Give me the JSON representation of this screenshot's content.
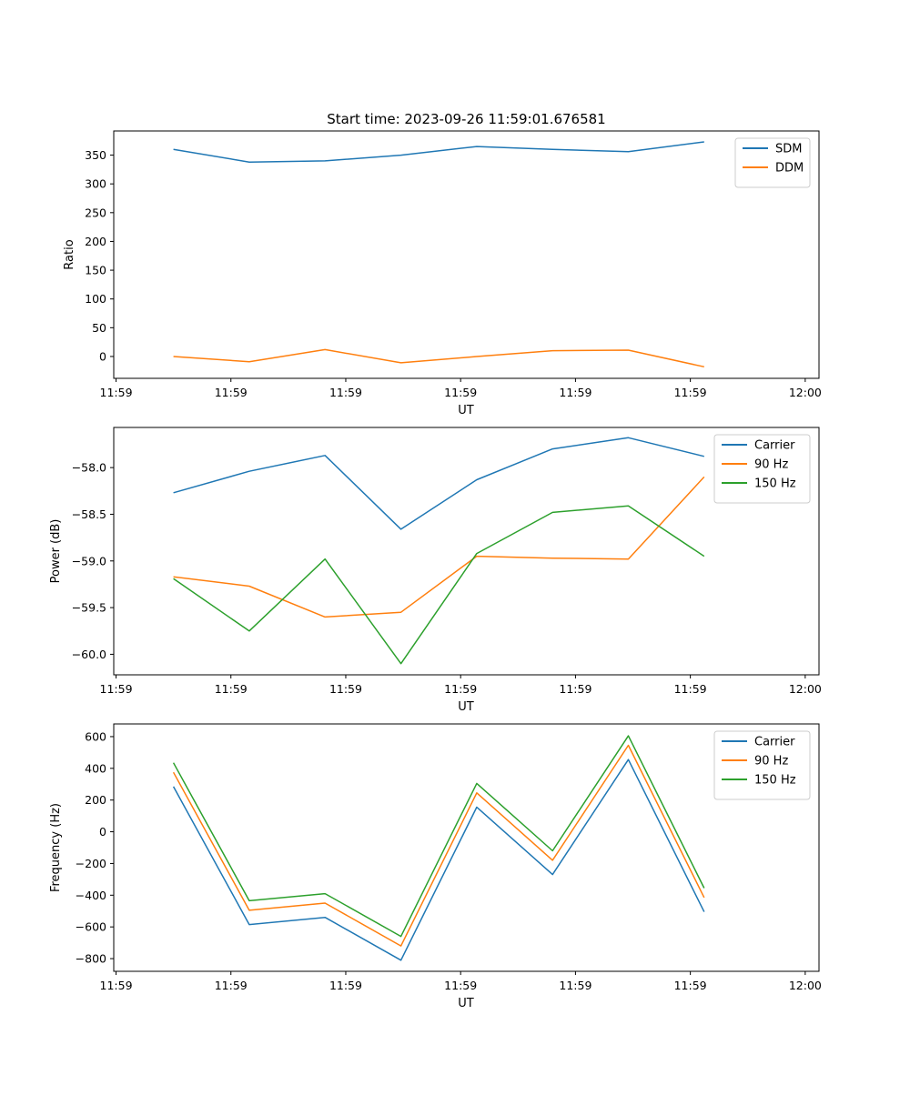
{
  "figure_title": "Start time: 2023-09-26 11:59:01.676581",
  "chart_data": [
    {
      "type": "line",
      "title": "Start time: 2023-09-26 11:59:01.676581",
      "xlabel": "UT",
      "ylabel": "Ratio",
      "x": [
        0.5,
        1.16,
        1.82,
        2.48,
        3.14,
        3.8,
        4.46,
        5.12
      ],
      "xlim": [
        -0.02,
        6.12
      ],
      "xticks": [
        0,
        1,
        2,
        3,
        4,
        5,
        6
      ],
      "xtick_labels": [
        "11:59",
        "11:59",
        "11:59",
        "11:59",
        "11:59",
        "11:59",
        "12:00"
      ],
      "ylim": [
        -38,
        392
      ],
      "yticks": [
        0,
        50,
        100,
        150,
        200,
        250,
        300,
        350
      ],
      "ytick_labels": [
        "0",
        "50",
        "100",
        "150",
        "200",
        "250",
        "300",
        "350"
      ],
      "legend_position": "top-right",
      "series": [
        {
          "name": "SDM",
          "color": "#1f77b4",
          "values": [
            360,
            338,
            340,
            350,
            365,
            360,
            356,
            373
          ]
        },
        {
          "name": "DDM",
          "color": "#ff7f0e",
          "values": [
            0,
            -9,
            12,
            -11,
            0,
            10,
            11,
            -18
          ]
        }
      ]
    },
    {
      "type": "line",
      "title": "",
      "xlabel": "UT",
      "ylabel": "Power (dB)",
      "x": [
        0.5,
        1.16,
        1.82,
        2.48,
        3.14,
        3.8,
        4.46,
        5.12
      ],
      "xlim": [
        -0.02,
        6.12
      ],
      "xticks": [
        0,
        1,
        2,
        3,
        4,
        5,
        6
      ],
      "xtick_labels": [
        "11:59",
        "11:59",
        "11:59",
        "11:59",
        "11:59",
        "11:59",
        "12:00"
      ],
      "ylim": [
        -60.22,
        -57.57
      ],
      "yticks": [
        -60.0,
        -59.5,
        -59.0,
        -58.5,
        -58.0
      ],
      "ytick_labels": [
        "−60.0",
        "−59.5",
        "−59.0",
        "−58.5",
        "−58.0"
      ],
      "legend_position": "top-right",
      "series": [
        {
          "name": "Carrier",
          "color": "#1f77b4",
          "values": [
            -58.27,
            -58.04,
            -57.87,
            -58.66,
            -58.13,
            -57.8,
            -57.68,
            -57.88
          ]
        },
        {
          "name": "90 Hz",
          "color": "#ff7f0e",
          "values": [
            -59.17,
            -59.27,
            -59.6,
            -59.55,
            -58.95,
            -58.97,
            -58.98,
            -58.1
          ]
        },
        {
          "name": "150 Hz",
          "color": "#2ca02c",
          "values": [
            -59.19,
            -59.75,
            -58.98,
            -60.1,
            -58.92,
            -58.48,
            -58.41,
            -58.95
          ]
        }
      ]
    },
    {
      "type": "line",
      "title": "",
      "xlabel": "UT",
      "ylabel": "Frequency (Hz)",
      "x": [
        0.5,
        1.16,
        1.82,
        2.48,
        3.14,
        3.8,
        4.46,
        5.12
      ],
      "xlim": [
        -0.02,
        6.12
      ],
      "xticks": [
        0,
        1,
        2,
        3,
        4,
        5,
        6
      ],
      "xtick_labels": [
        "11:59",
        "11:59",
        "11:59",
        "11:59",
        "11:59",
        "11:59",
        "12:00"
      ],
      "ylim": [
        -880,
        680
      ],
      "yticks": [
        -800,
        -600,
        -400,
        -200,
        0,
        200,
        400,
        600
      ],
      "ytick_labels": [
        "−800",
        "−600",
        "−400",
        "−200",
        "0",
        "200",
        "400",
        "600"
      ],
      "legend_position": "top-right",
      "series": [
        {
          "name": "Carrier",
          "color": "#1f77b4",
          "values": [
            285,
            -585,
            -540,
            -810,
            155,
            -270,
            455,
            -505
          ]
        },
        {
          "name": "90 Hz",
          "color": "#ff7f0e",
          "values": [
            375,
            -495,
            -450,
            -720,
            245,
            -180,
            545,
            -415
          ]
        },
        {
          "name": "150 Hz",
          "color": "#2ca02c",
          "values": [
            435,
            -435,
            -390,
            -660,
            305,
            -120,
            605,
            -355
          ]
        }
      ]
    }
  ]
}
